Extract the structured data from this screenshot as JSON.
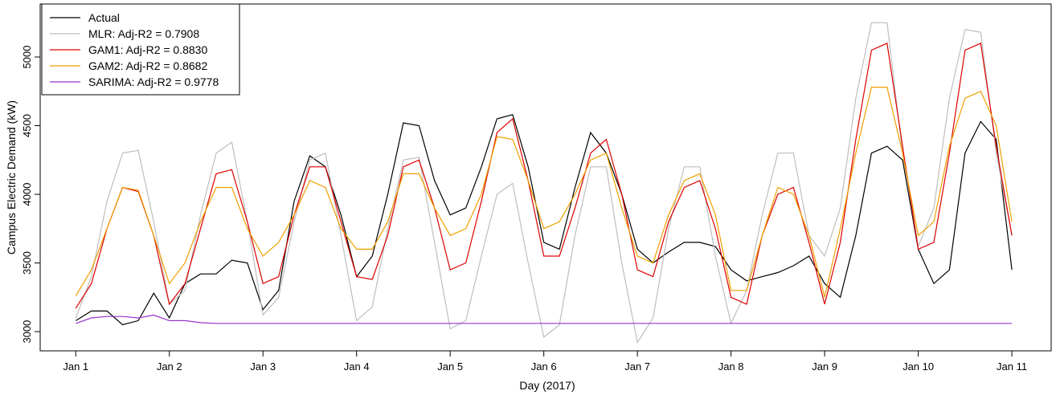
{
  "chart_data": {
    "type": "line",
    "xlabel": "Day (2017)",
    "ylabel": "Campus Electric Demand (kW)",
    "x": [
      0,
      0.167,
      0.333,
      0.5,
      0.667,
      0.833,
      1,
      1.167,
      1.333,
      1.5,
      1.667,
      1.833,
      2,
      2.167,
      2.333,
      2.5,
      2.667,
      2.833,
      3,
      3.167,
      3.333,
      3.5,
      3.667,
      3.833,
      4,
      4.167,
      4.333,
      4.5,
      4.667,
      4.833,
      5,
      5.167,
      5.333,
      5.5,
      5.667,
      5.833,
      6,
      6.167,
      6.333,
      6.5,
      6.667,
      6.833,
      7,
      7.167,
      7.333,
      7.5,
      7.667,
      7.833,
      8,
      8.167,
      8.333,
      8.5,
      8.667,
      8.833,
      9,
      9.167,
      9.333,
      9.5,
      9.667,
      9.833,
      10
    ],
    "series": [
      {
        "name": "Actual",
        "color": "#000000",
        "values": [
          3080,
          3150,
          3150,
          3050,
          3080,
          3280,
          3100,
          3350,
          3420,
          3420,
          3520,
          3500,
          3160,
          3300,
          3950,
          4280,
          4200,
          3850,
          3400,
          3550,
          4000,
          4520,
          4500,
          4100,
          3850,
          3900,
          4200,
          4550,
          4580,
          4200,
          3650,
          3600,
          4050,
          4450,
          4300,
          4000,
          3600,
          3500,
          3580,
          3650,
          3650,
          3620,
          3450,
          3370,
          3400,
          3430,
          3480,
          3550,
          3350,
          3250,
          3700,
          4300,
          4350,
          4250,
          3600,
          3350,
          3450,
          4300,
          4530,
          4400,
          3450
        ]
      },
      {
        "name": "MLR: Adj-R2 = 0.7908",
        "color": "#bebebe",
        "values": [
          3100,
          3400,
          3950,
          4300,
          4320,
          3800,
          3200,
          3300,
          3850,
          4300,
          4380,
          3800,
          3120,
          3250,
          3800,
          4250,
          4300,
          3700,
          3080,
          3180,
          3750,
          4250,
          4270,
          3650,
          3020,
          3080,
          3550,
          4000,
          4080,
          3500,
          2960,
          3050,
          3700,
          4200,
          4200,
          3500,
          2920,
          3100,
          3750,
          4200,
          4200,
          3550,
          3060,
          3300,
          3850,
          4300,
          4300,
          3700,
          3550,
          3900,
          4700,
          5250,
          5250,
          4300,
          3620,
          3900,
          4700,
          5200,
          5180,
          4300,
          3700
        ]
      },
      {
        "name": "GAM1: Adj-R2 = 0.8830",
        "color": "#dd0000",
        "values": [
          3170,
          3350,
          3750,
          4050,
          4020,
          3700,
          3200,
          3350,
          3750,
          4150,
          4180,
          3800,
          3350,
          3400,
          3850,
          4200,
          4200,
          3800,
          3400,
          3380,
          3700,
          4200,
          4250,
          3900,
          3450,
          3500,
          3950,
          4450,
          4550,
          4100,
          3550,
          3550,
          3900,
          4300,
          4400,
          4000,
          3450,
          3400,
          3800,
          4050,
          4100,
          3750,
          3250,
          3200,
          3700,
          4000,
          4050,
          3650,
          3200,
          3650,
          4400,
          5050,
          5100,
          4350,
          3600,
          3650,
          4300,
          5050,
          5100,
          4350,
          3700
        ]
      },
      {
        "name": "GAM2: Adj-R2 = 0.8682",
        "color": "#eea000",
        "values": [
          3260,
          3450,
          3750,
          4050,
          4030,
          3700,
          3350,
          3500,
          3800,
          4050,
          4050,
          3750,
          3550,
          3650,
          3850,
          4100,
          4050,
          3750,
          3600,
          3600,
          3800,
          4150,
          4150,
          3900,
          3700,
          3750,
          4000,
          4420,
          4400,
          4100,
          3750,
          3800,
          4000,
          4250,
          4300,
          3900,
          3550,
          3500,
          3850,
          4100,
          4150,
          3850,
          3300,
          3300,
          3700,
          4050,
          4000,
          3700,
          3250,
          3750,
          4300,
          4780,
          4780,
          4300,
          3700,
          3800,
          4350,
          4700,
          4750,
          4500,
          3800
        ]
      },
      {
        "name": "SARIMA: Adj-R2 = 0.9778",
        "color": "#9a32cd",
        "values": [
          3060,
          3100,
          3110,
          3110,
          3100,
          3120,
          3080,
          3080,
          3065,
          3060,
          3060,
          3060,
          3060,
          3060,
          3060,
          3060,
          3060,
          3060,
          3060,
          3060,
          3060,
          3060,
          3060,
          3060,
          3060,
          3060,
          3060,
          3060,
          3060,
          3060,
          3060,
          3060,
          3060,
          3060,
          3060,
          3060,
          3060,
          3060,
          3060,
          3060,
          3060,
          3060,
          3060,
          3060,
          3060,
          3060,
          3060,
          3060,
          3060,
          3060,
          3060,
          3060,
          3060,
          3060,
          3060,
          3060,
          3060,
          3060,
          3060,
          3060,
          3060
        ]
      }
    ],
    "xlim": [
      -0.38,
      10.42
    ],
    "xticks": [
      {
        "value": 0,
        "label": "Jan 1"
      },
      {
        "value": 1,
        "label": "Jan 2"
      },
      {
        "value": 2,
        "label": "Jan 3"
      },
      {
        "value": 3,
        "label": "Jan 4"
      },
      {
        "value": 4,
        "label": "Jan 5"
      },
      {
        "value": 5,
        "label": "Jan 6"
      },
      {
        "value": 6,
        "label": "Jan 7"
      },
      {
        "value": 7,
        "label": "Jan 8"
      },
      {
        "value": 8,
        "label": "Jan 9"
      },
      {
        "value": 9,
        "label": "Jan 10"
      },
      {
        "value": 10,
        "label": "Jan 11"
      }
    ],
    "ylim": [
      2860,
      5386
    ],
    "yticks": [
      3000,
      3500,
      4000,
      4500,
      5000
    ],
    "legend": "top-left"
  }
}
